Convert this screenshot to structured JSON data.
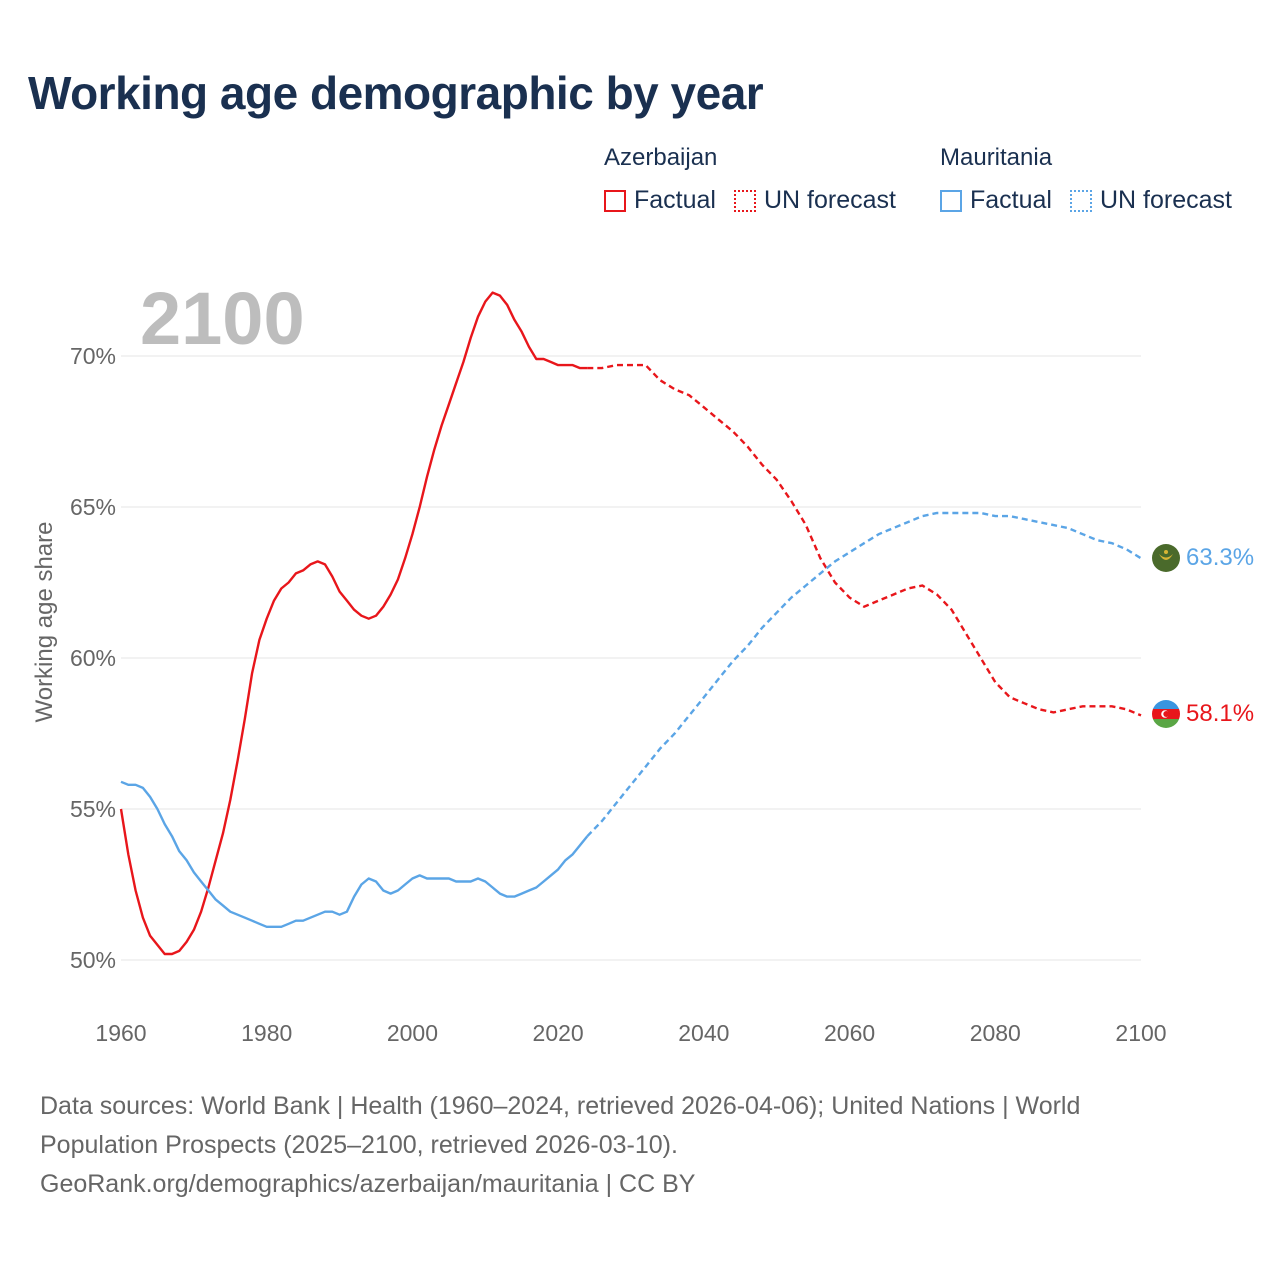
{
  "title": "Working age demographic by year",
  "legend": {
    "groups": [
      {
        "name": "Azerbaijan",
        "factual_label": "Factual",
        "forecast_label": "UN forecast",
        "color": "#e8161b"
      },
      {
        "name": "Mauritania",
        "factual_label": "Factual",
        "forecast_label": "UN forecast",
        "color": "#5ba5e6"
      }
    ]
  },
  "year_label": "2100",
  "footer": {
    "sources": "Data sources: World Bank | Health (1960–2024, retrieved 2026-04-06); United Nations | World Population Prospects (2025–2100, retrieved 2026-03-10).",
    "credit": "GeoRank.org/demographics/azerbaijan/mauritania | CC BY"
  },
  "chart_data": {
    "type": "line",
    "title": "Working age demographic by year",
    "xlabel": "",
    "ylabel": "Working age share",
    "xlim": [
      1960,
      2100
    ],
    "ylim": [
      49,
      73
    ],
    "xticks": [
      1960,
      1980,
      2000,
      2020,
      2040,
      2060,
      2080,
      2100
    ],
    "xtick_labels": [
      "1960",
      "1980",
      "2000",
      "2020",
      "2040",
      "2060",
      "2080",
      "2100"
    ],
    "yticks": [
      50,
      55,
      60,
      65,
      70
    ],
    "ytick_labels": [
      "50%",
      "55%",
      "60%",
      "65%",
      "70%"
    ],
    "grid": true,
    "factual_range": [
      1960,
      2024
    ],
    "forecast_range": [
      2024,
      2100
    ],
    "series": [
      {
        "name": "Azerbaijan",
        "color": "#e8161b",
        "end_label": "58.1%",
        "points": [
          [
            1960,
            55.0
          ],
          [
            1961,
            53.5
          ],
          [
            1962,
            52.3
          ],
          [
            1963,
            51.4
          ],
          [
            1964,
            50.8
          ],
          [
            1965,
            50.5
          ],
          [
            1966,
            50.2
          ],
          [
            1967,
            50.2
          ],
          [
            1968,
            50.3
          ],
          [
            1969,
            50.6
          ],
          [
            1970,
            51.0
          ],
          [
            1971,
            51.6
          ],
          [
            1972,
            52.4
          ],
          [
            1973,
            53.3
          ],
          [
            1974,
            54.2
          ],
          [
            1975,
            55.3
          ],
          [
            1976,
            56.6
          ],
          [
            1977,
            58.0
          ],
          [
            1978,
            59.5
          ],
          [
            1979,
            60.6
          ],
          [
            1980,
            61.3
          ],
          [
            1981,
            61.9
          ],
          [
            1982,
            62.3
          ],
          [
            1983,
            62.5
          ],
          [
            1984,
            62.8
          ],
          [
            1985,
            62.9
          ],
          [
            1986,
            63.1
          ],
          [
            1987,
            63.2
          ],
          [
            1988,
            63.1
          ],
          [
            1989,
            62.7
          ],
          [
            1990,
            62.2
          ],
          [
            1991,
            61.9
          ],
          [
            1992,
            61.6
          ],
          [
            1993,
            61.4
          ],
          [
            1994,
            61.3
          ],
          [
            1995,
            61.4
          ],
          [
            1996,
            61.7
          ],
          [
            1997,
            62.1
          ],
          [
            1998,
            62.6
          ],
          [
            1999,
            63.3
          ],
          [
            2000,
            64.1
          ],
          [
            2001,
            65.0
          ],
          [
            2002,
            66.0
          ],
          [
            2003,
            66.9
          ],
          [
            2004,
            67.7
          ],
          [
            2005,
            68.4
          ],
          [
            2006,
            69.1
          ],
          [
            2007,
            69.8
          ],
          [
            2008,
            70.6
          ],
          [
            2009,
            71.3
          ],
          [
            2010,
            71.8
          ],
          [
            2011,
            72.1
          ],
          [
            2012,
            72.0
          ],
          [
            2013,
            71.7
          ],
          [
            2014,
            71.2
          ],
          [
            2015,
            70.8
          ],
          [
            2016,
            70.3
          ],
          [
            2017,
            69.9
          ],
          [
            2018,
            69.9
          ],
          [
            2019,
            69.8
          ],
          [
            2020,
            69.7
          ],
          [
            2021,
            69.7
          ],
          [
            2022,
            69.7
          ],
          [
            2023,
            69.6
          ],
          [
            2024,
            69.6
          ],
          [
            2026,
            69.6
          ],
          [
            2028,
            69.7
          ],
          [
            2030,
            69.7
          ],
          [
            2032,
            69.7
          ],
          [
            2034,
            69.2
          ],
          [
            2036,
            68.9
          ],
          [
            2038,
            68.7
          ],
          [
            2040,
            68.3
          ],
          [
            2042,
            67.9
          ],
          [
            2044,
            67.5
          ],
          [
            2046,
            67.0
          ],
          [
            2048,
            66.4
          ],
          [
            2050,
            65.9
          ],
          [
            2052,
            65.2
          ],
          [
            2054,
            64.4
          ],
          [
            2056,
            63.3
          ],
          [
            2058,
            62.5
          ],
          [
            2060,
            62.0
          ],
          [
            2062,
            61.7
          ],
          [
            2064,
            61.9
          ],
          [
            2066,
            62.1
          ],
          [
            2068,
            62.3
          ],
          [
            2070,
            62.4
          ],
          [
            2072,
            62.1
          ],
          [
            2074,
            61.6
          ],
          [
            2076,
            60.8
          ],
          [
            2078,
            60.0
          ],
          [
            2080,
            59.2
          ],
          [
            2082,
            58.7
          ],
          [
            2084,
            58.5
          ],
          [
            2086,
            58.3
          ],
          [
            2088,
            58.2
          ],
          [
            2090,
            58.3
          ],
          [
            2092,
            58.4
          ],
          [
            2094,
            58.4
          ],
          [
            2096,
            58.4
          ],
          [
            2098,
            58.3
          ],
          [
            2100,
            58.1
          ]
        ]
      },
      {
        "name": "Mauritania",
        "color": "#5ba5e6",
        "end_label": "63.3%",
        "points": [
          [
            1960,
            55.9
          ],
          [
            1961,
            55.8
          ],
          [
            1962,
            55.8
          ],
          [
            1963,
            55.7
          ],
          [
            1964,
            55.4
          ],
          [
            1965,
            55.0
          ],
          [
            1966,
            54.5
          ],
          [
            1967,
            54.1
          ],
          [
            1968,
            53.6
          ],
          [
            1969,
            53.3
          ],
          [
            1970,
            52.9
          ],
          [
            1971,
            52.6
          ],
          [
            1972,
            52.3
          ],
          [
            1973,
            52.0
          ],
          [
            1974,
            51.8
          ],
          [
            1975,
            51.6
          ],
          [
            1976,
            51.5
          ],
          [
            1977,
            51.4
          ],
          [
            1978,
            51.3
          ],
          [
            1979,
            51.2
          ],
          [
            1980,
            51.1
          ],
          [
            1981,
            51.1
          ],
          [
            1982,
            51.1
          ],
          [
            1983,
            51.2
          ],
          [
            1984,
            51.3
          ],
          [
            1985,
            51.3
          ],
          [
            1986,
            51.4
          ],
          [
            1987,
            51.5
          ],
          [
            1988,
            51.6
          ],
          [
            1989,
            51.6
          ],
          [
            1990,
            51.5
          ],
          [
            1991,
            51.6
          ],
          [
            1992,
            52.1
          ],
          [
            1993,
            52.5
          ],
          [
            1994,
            52.7
          ],
          [
            1995,
            52.6
          ],
          [
            1996,
            52.3
          ],
          [
            1997,
            52.2
          ],
          [
            1998,
            52.3
          ],
          [
            1999,
            52.5
          ],
          [
            2000,
            52.7
          ],
          [
            2001,
            52.8
          ],
          [
            2002,
            52.7
          ],
          [
            2003,
            52.7
          ],
          [
            2004,
            52.7
          ],
          [
            2005,
            52.7
          ],
          [
            2006,
            52.6
          ],
          [
            2007,
            52.6
          ],
          [
            2008,
            52.6
          ],
          [
            2009,
            52.7
          ],
          [
            2010,
            52.6
          ],
          [
            2011,
            52.4
          ],
          [
            2012,
            52.2
          ],
          [
            2013,
            52.1
          ],
          [
            2014,
            52.1
          ],
          [
            2015,
            52.2
          ],
          [
            2016,
            52.3
          ],
          [
            2017,
            52.4
          ],
          [
            2018,
            52.6
          ],
          [
            2019,
            52.8
          ],
          [
            2020,
            53.0
          ],
          [
            2021,
            53.3
          ],
          [
            2022,
            53.5
          ],
          [
            2023,
            53.8
          ],
          [
            2024,
            54.1
          ],
          [
            2026,
            54.6
          ],
          [
            2028,
            55.2
          ],
          [
            2030,
            55.8
          ],
          [
            2032,
            56.4
          ],
          [
            2034,
            57.0
          ],
          [
            2036,
            57.5
          ],
          [
            2038,
            58.1
          ],
          [
            2040,
            58.7
          ],
          [
            2042,
            59.3
          ],
          [
            2044,
            59.9
          ],
          [
            2046,
            60.4
          ],
          [
            2048,
            61.0
          ],
          [
            2050,
            61.5
          ],
          [
            2052,
            62.0
          ],
          [
            2054,
            62.4
          ],
          [
            2056,
            62.8
          ],
          [
            2058,
            63.2
          ],
          [
            2060,
            63.5
          ],
          [
            2062,
            63.8
          ],
          [
            2064,
            64.1
          ],
          [
            2066,
            64.3
          ],
          [
            2068,
            64.5
          ],
          [
            2070,
            64.7
          ],
          [
            2072,
            64.8
          ],
          [
            2074,
            64.8
          ],
          [
            2076,
            64.8
          ],
          [
            2078,
            64.8
          ],
          [
            2080,
            64.7
          ],
          [
            2082,
            64.7
          ],
          [
            2084,
            64.6
          ],
          [
            2086,
            64.5
          ],
          [
            2088,
            64.4
          ],
          [
            2090,
            64.3
          ],
          [
            2092,
            64.1
          ],
          [
            2094,
            63.9
          ],
          [
            2096,
            63.8
          ],
          [
            2098,
            63.6
          ],
          [
            2100,
            63.3
          ]
        ]
      }
    ]
  }
}
